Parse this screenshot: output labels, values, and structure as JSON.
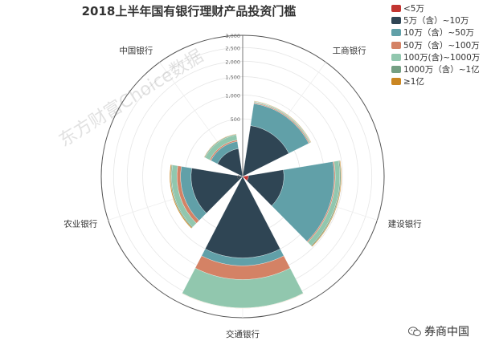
{
  "chart_data": {
    "type": "polar-stacked-bar",
    "title": "2018上半年国有银行理财产品投资门槛",
    "categories": [
      "工商银行",
      "建设银行",
      "交通银行",
      "农业银行",
      "中国银行"
    ],
    "radial_axis": {
      "min": 0,
      "max": 3000,
      "ticks": [
        "0",
        "500",
        "1,000",
        "1,500",
        "2,000",
        "2,500",
        "3,000"
      ]
    },
    "legend_position": "top-right",
    "series": [
      {
        "name": "<5万",
        "color": "#c23531",
        "values": [
          0,
          5,
          0,
          0,
          0
        ]
      },
      {
        "name": "5万（含）~10万",
        "color": "#2f4554",
        "values": [
          400,
          250,
          1000,
          400,
          120
        ]
      },
      {
        "name": "10万（含）~50万",
        "color": "#61a0a8",
        "values": [
          420,
          1000,
          200,
          180,
          70
        ]
      },
      {
        "name": "50万（含）~100万",
        "color": "#d48265",
        "values": [
          20,
          30,
          400,
          70,
          15
        ]
      },
      {
        "name": "100万(含)~1000万",
        "color": "#91c7ae",
        "values": [
          20,
          130,
          1000,
          110,
          60
        ]
      },
      {
        "name": "1000万（含）~1亿",
        "color": "#749f83",
        "values": [
          10,
          30,
          10,
          20,
          10
        ]
      },
      {
        "name": "≥1亿",
        "color": "#ca8622",
        "values": [
          10,
          20,
          5,
          20,
          5
        ]
      }
    ]
  },
  "watermark": "东方财富Choice数据",
  "brand": {
    "name": "券商中国",
    "icon": "wechat-icon"
  }
}
